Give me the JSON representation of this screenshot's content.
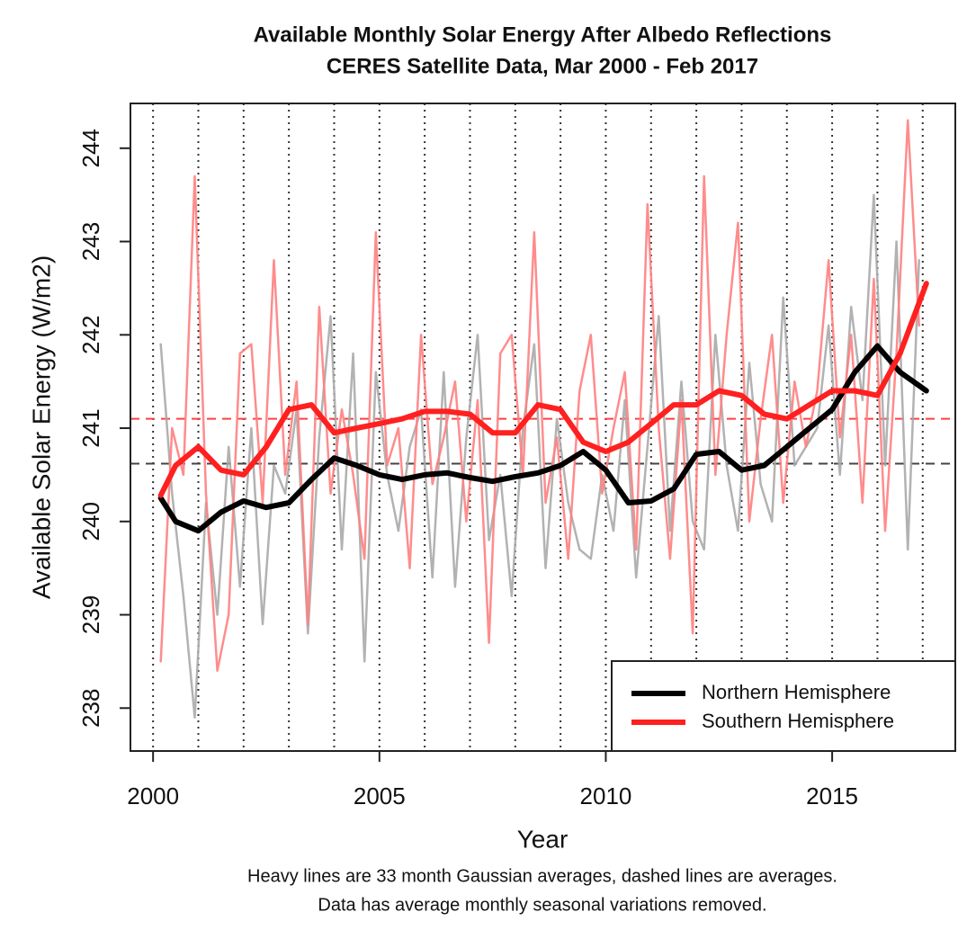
{
  "chart_data": {
    "type": "line",
    "title": "Available Monthly Solar Energy After Albedo Reflections",
    "subtitle": "CERES Satellite Data, Mar 2000 - Feb 2017",
    "x_label": "Year",
    "y_label": "Available Solar Energy (W/m2)",
    "notes": [
      "Heavy lines are 33 month Gaussian averages, dashed lines are averages.",
      "Data has average monthly seasonal variations removed."
    ],
    "xlim": [
      1999.5,
      2017.72
    ],
    "xticks": [
      2000,
      2005,
      2010,
      2015
    ],
    "ylim": [
      237.54,
      244.48
    ],
    "yticks": [
      238,
      239,
      240,
      241,
      242,
      243,
      244
    ],
    "year_lines": [
      2000,
      2001,
      2002,
      2003,
      2004,
      2005,
      2006,
      2007,
      2008,
      2009,
      2010,
      2011,
      2012,
      2013,
      2014,
      2015,
      2016,
      2017
    ],
    "mean_lines": [
      {
        "value": 240.62,
        "color": "#444444"
      },
      {
        "value": 241.1,
        "color": "#ff4040"
      }
    ],
    "legend": "bottom-right",
    "series": [
      {
        "color": "#aaaaaa",
        "x": [
          2000.17,
          2000.42,
          2000.67,
          2000.92,
          2001.17,
          2001.42,
          2001.67,
          2001.92,
          2002.17,
          2002.42,
          2002.67,
          2002.92,
          2003.17,
          2003.42,
          2003.67,
          2003.92,
          2004.17,
          2004.42,
          2004.67,
          2004.92,
          2005.17,
          2005.42,
          2005.67,
          2005.92,
          2006.17,
          2006.42,
          2006.67,
          2006.92,
          2007.17,
          2007.42,
          2007.67,
          2007.92,
          2008.17,
          2008.42,
          2008.67,
          2008.92,
          2009.17,
          2009.42,
          2009.67,
          2009.92,
          2010.17,
          2010.42,
          2010.67,
          2010.92,
          2011.17,
          2011.42,
          2011.67,
          2011.92,
          2012.17,
          2012.42,
          2012.67,
          2012.92,
          2013.17,
          2013.42,
          2013.67,
          2013.92,
          2014.17,
          2014.42,
          2014.67,
          2014.92,
          2015.17,
          2015.42,
          2015.67,
          2015.92,
          2016.17,
          2016.42,
          2016.67,
          2016.92
        ],
        "values": [
          241.9,
          240.3,
          239.2,
          237.9,
          240.2,
          239.0,
          240.8,
          239.3,
          241.0,
          238.9,
          240.6,
          240.3,
          241.2,
          238.8,
          240.9,
          242.2,
          239.7,
          241.8,
          238.5,
          241.6,
          240.5,
          239.9,
          240.8,
          241.2,
          239.4,
          241.6,
          239.3,
          240.9,
          242.0,
          239.8,
          240.5,
          239.2,
          241.0,
          241.9,
          239.5,
          241.1,
          240.2,
          239.7,
          239.6,
          240.5,
          239.9,
          241.3,
          239.4,
          240.8,
          242.2,
          239.9,
          241.5,
          240.0,
          239.7,
          242.0,
          240.6,
          239.9,
          241.7,
          240.4,
          240.0,
          242.4,
          240.6,
          240.8,
          241.0,
          242.1,
          240.5,
          242.3,
          241.3,
          243.5,
          240.6,
          243.0,
          239.7,
          242.8
        ]
      },
      {
        "color": "#ff8080",
        "x": [
          2000.17,
          2000.42,
          2000.67,
          2000.92,
          2001.17,
          2001.42,
          2001.67,
          2001.92,
          2002.17,
          2002.42,
          2002.67,
          2002.92,
          2003.17,
          2003.42,
          2003.67,
          2003.92,
          2004.17,
          2004.42,
          2004.67,
          2004.92,
          2005.17,
          2005.42,
          2005.67,
          2005.92,
          2006.17,
          2006.42,
          2006.67,
          2006.92,
          2007.17,
          2007.42,
          2007.67,
          2007.92,
          2008.17,
          2008.42,
          2008.67,
          2008.92,
          2009.17,
          2009.42,
          2009.67,
          2009.92,
          2010.17,
          2010.42,
          2010.67,
          2010.92,
          2011.17,
          2011.42,
          2011.67,
          2011.92,
          2012.17,
          2012.42,
          2012.67,
          2012.92,
          2013.17,
          2013.42,
          2013.67,
          2013.92,
          2014.17,
          2014.42,
          2014.67,
          2014.92,
          2015.17,
          2015.42,
          2015.67,
          2015.92,
          2016.17,
          2016.42,
          2016.67,
          2016.92
        ],
        "values": [
          238.5,
          241.0,
          240.5,
          243.7,
          240.3,
          238.4,
          239.0,
          241.8,
          241.9,
          240.2,
          242.8,
          240.5,
          241.5,
          238.9,
          242.3,
          240.3,
          241.2,
          240.5,
          239.6,
          243.1,
          240.6,
          241.0,
          239.5,
          242.0,
          240.4,
          240.9,
          241.5,
          240.0,
          241.3,
          238.7,
          241.8,
          242.0,
          240.5,
          243.1,
          240.2,
          240.9,
          239.6,
          241.4,
          242.0,
          240.3,
          241.0,
          241.6,
          239.7,
          243.4,
          241.0,
          239.6,
          241.3,
          238.8,
          243.7,
          240.5,
          242.0,
          243.2,
          240.0,
          241.1,
          242.0,
          240.2,
          241.5,
          240.8,
          241.4,
          242.8,
          240.9,
          242.0,
          240.2,
          242.6,
          239.9,
          241.8,
          244.3,
          242.1
        ]
      },
      {
        "name": "Northern Hemisphere",
        "color": "#000000",
        "x": [
          2000.17,
          2000.5,
          2001,
          2001.5,
          2002,
          2002.5,
          2003,
          2003.5,
          2004,
          2004.5,
          2005,
          2005.5,
          2006,
          2006.5,
          2007,
          2007.5,
          2008,
          2008.5,
          2009,
          2009.5,
          2010,
          2010.5,
          2011,
          2011.5,
          2012,
          2012.5,
          2013,
          2013.5,
          2014,
          2014.5,
          2015,
          2015.5,
          2016,
          2016.5,
          2017.08
        ],
        "values": [
          240.25,
          240.0,
          239.9,
          240.1,
          240.22,
          240.15,
          240.2,
          240.45,
          240.68,
          240.6,
          240.5,
          240.45,
          240.5,
          240.52,
          240.47,
          240.43,
          240.48,
          240.52,
          240.6,
          240.75,
          240.55,
          240.2,
          240.22,
          240.35,
          240.72,
          240.75,
          240.55,
          240.6,
          240.8,
          241.0,
          241.2,
          241.6,
          241.88,
          241.6,
          241.4
        ]
      },
      {
        "name": "Southern Hemisphere",
        "color": "#ff2020",
        "x": [
          2000.17,
          2000.5,
          2001,
          2001.5,
          2002,
          2002.5,
          2003,
          2003.5,
          2004,
          2004.5,
          2005,
          2005.5,
          2006,
          2006.5,
          2007,
          2007.5,
          2008,
          2008.5,
          2009,
          2009.5,
          2010,
          2010.5,
          2011,
          2011.5,
          2012,
          2012.5,
          2013,
          2013.5,
          2014,
          2014.5,
          2015,
          2015.5,
          2016,
          2016.5,
          2017.08
        ],
        "values": [
          240.28,
          240.6,
          240.8,
          240.55,
          240.5,
          240.8,
          241.2,
          241.25,
          240.95,
          241.0,
          241.05,
          241.1,
          241.18,
          241.18,
          241.15,
          240.95,
          240.95,
          241.25,
          241.2,
          240.85,
          240.75,
          240.85,
          241.05,
          241.25,
          241.25,
          241.4,
          241.35,
          241.15,
          241.1,
          241.25,
          241.4,
          241.4,
          241.35,
          241.8,
          242.55
        ]
      }
    ]
  }
}
